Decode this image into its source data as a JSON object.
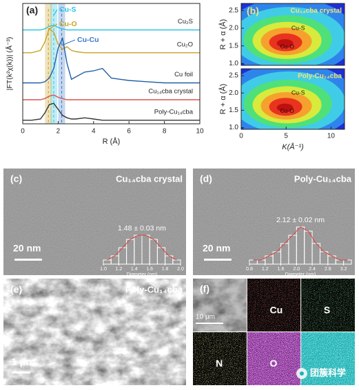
{
  "panel_a": {
    "label": "(a)",
    "x_label": "R (Å)",
    "y_label": "|FT(k²χ(k))| (Å⁻³)",
    "xlim": [
      0,
      10
    ],
    "ylim": [
      0,
      10
    ],
    "xticks": [
      0,
      2,
      4,
      6,
      8,
      10
    ],
    "x": [
      0,
      0.5,
      1,
      1.25,
      1.5,
      1.75,
      2,
      2.25,
      2.5,
      2.75,
      3,
      3.5,
      4,
      4.5,
      5,
      5.5,
      6,
      7,
      8,
      9,
      10
    ],
    "series": [
      {
        "name": "Cu₂S",
        "color": "#29c5e6",
        "values": [
          7.8,
          7.8,
          7.8,
          7.9,
          8.1,
          8.2,
          8.0,
          7.9,
          7.8,
          7.8,
          7.8,
          7.8,
          7.8,
          7.8,
          7.8,
          7.8,
          7.8,
          7.8,
          7.8,
          7.8,
          7.8
        ]
      },
      {
        "name": "Cu₂O",
        "color": "#c9a227",
        "values": [
          5.9,
          5.9,
          6.1,
          6.8,
          7.9,
          7.6,
          6.6,
          6.2,
          6.4,
          6.1,
          6.0,
          5.9,
          5.9,
          5.9,
          5.9,
          5.9,
          5.9,
          5.9,
          5.9,
          5.9,
          5.9
        ]
      },
      {
        "name": "Cu foil",
        "color": "#1f5fa8",
        "values": [
          3.4,
          3.4,
          3.4,
          3.5,
          3.8,
          4.6,
          6.3,
          7.1,
          5.0,
          3.7,
          3.9,
          4.3,
          4.4,
          4.6,
          3.8,
          3.7,
          3.6,
          3.5,
          3.4,
          3.4,
          3.4
        ]
      },
      {
        "name": "Cu₁₄cba crystal",
        "color": "#d9534f",
        "values": [
          2.0,
          2.0,
          2.0,
          2.1,
          2.3,
          2.4,
          2.2,
          2.1,
          2.0,
          2.0,
          2.0,
          2.0,
          2.0,
          2.0,
          2.0,
          2.0,
          2.0,
          2.0,
          2.0,
          2.0,
          2.0
        ]
      },
      {
        "name": "Poly-Cu₁₄cba",
        "color": "#333333",
        "values": [
          0.3,
          0.3,
          0.4,
          0.9,
          1.6,
          1.7,
          1.2,
          0.7,
          0.5,
          0.4,
          0.4,
          0.5,
          0.4,
          0.3,
          0.3,
          0.3,
          0.3,
          0.3,
          0.3,
          0.3,
          0.3
        ]
      }
    ],
    "annotations": [
      {
        "text": "Cu-S",
        "x": 1.75,
        "color": "#29c5e6"
      },
      {
        "text": "Cu-O",
        "x": 1.45,
        "color": "#c9a227"
      },
      {
        "text": "Cu-Cu",
        "x": 2.2,
        "color": "#3a78c8"
      }
    ]
  },
  "panel_b": {
    "label": "(b)",
    "x_label": "K(Å⁻¹)",
    "y_label": "R + α (Å)",
    "xlim": [
      0,
      11.5
    ],
    "ylim": [
      0.95,
      2.7
    ],
    "xticks": [
      0,
      5,
      10
    ],
    "yticks": [
      {
        "value": 1.0,
        "label": "1.0"
      },
      {
        "value": 1.5,
        "label": "1.5"
      },
      {
        "value": 2.0,
        "label": "2.0"
      },
      {
        "value": 2.5,
        "label": "2.5"
      }
    ],
    "maps": [
      {
        "title": "Cu₁₄cba crystal",
        "peaks": [
          "Cu-S",
          "Cu-O"
        ]
      },
      {
        "title": "Poly-Cu₁₄cba",
        "peaks": [
          "Cu-S",
          "Cu-O"
        ]
      }
    ]
  },
  "panel_c": {
    "label": "(c)",
    "title": "Cu₁₄cba crystal",
    "scale": "20 nm",
    "fit": "1.48 ± 0.03 nm",
    "x_label": "Diameter (nm)",
    "bins": [
      1.0,
      1.1,
      1.2,
      1.3,
      1.4,
      1.5,
      1.6,
      1.7,
      1.8,
      1.9,
      2.0
    ],
    "counts": [
      1,
      2,
      4,
      6,
      7,
      7,
      6,
      4,
      2,
      1
    ],
    "xticks": [
      {
        "value": 1.0,
        "label": "1.0"
      },
      {
        "value": 1.2,
        "label": "1.2"
      },
      {
        "value": 1.4,
        "label": "1.4"
      },
      {
        "value": 1.6,
        "label": "1.6"
      },
      {
        "value": 1.8,
        "label": "1.8"
      },
      {
        "value": 2.0,
        "label": "2.0"
      }
    ]
  },
  "panel_d": {
    "label": "(d)",
    "title": "Poly-Cu₁₄cba",
    "scale": "20 nm",
    "fit": "2.12 ± 0.02 nm",
    "x_label": "Diameter (nm)",
    "bins": [
      0.8,
      1.0,
      1.2,
      1.4,
      1.6,
      1.8,
      2.0,
      2.2,
      2.4,
      2.6,
      2.8,
      3.0,
      3.2,
      3.4
    ],
    "counts": [
      1,
      1,
      2,
      3,
      5,
      7,
      9,
      8,
      5,
      3,
      2,
      1,
      1
    ],
    "xticks": [
      {
        "value": 0.8,
        "label": "0.8"
      },
      {
        "value": 1.2,
        "label": "1.2"
      },
      {
        "value": 1.6,
        "label": "1.6"
      },
      {
        "value": 2.0,
        "label": "2.0"
      },
      {
        "value": 2.4,
        "label": "2.4"
      },
      {
        "value": 2.8,
        "label": "2.8"
      },
      {
        "value": 3.2,
        "label": "3.2"
      }
    ]
  },
  "panel_e": {
    "label": "(e)",
    "title": "Poly-Cu₁₄cba",
    "scale": "1 μm"
  },
  "panel_f": {
    "label": "(f)",
    "scale": "10 μm",
    "maps": [
      {
        "name": "Cu",
        "color": "#d02020"
      },
      {
        "name": "S",
        "color": "#30c040"
      },
      {
        "name": "N",
        "color": "#d8d050"
      },
      {
        "name": "O",
        "color": "#c040d8"
      }
    ]
  },
  "watermark": "团簇科学"
}
